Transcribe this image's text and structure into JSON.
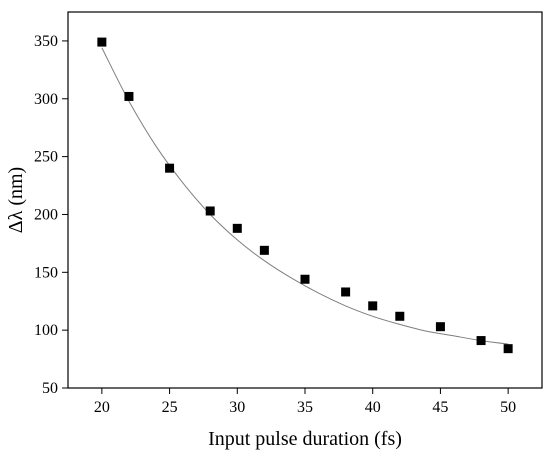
{
  "chart_data": {
    "type": "scatter",
    "xlabel": "Input pulse duration (fs)",
    "ylabel": "Δλ (nm)",
    "xlim": [
      17.5,
      52.5
    ],
    "ylim": [
      50,
      375
    ],
    "x_ticks": [
      20,
      25,
      30,
      35,
      40,
      45,
      50
    ],
    "y_ticks": [
      50,
      100,
      150,
      200,
      250,
      300,
      350
    ],
    "grid": false,
    "series": [
      {
        "marker": "square",
        "color": "#000000",
        "x": [
          20,
          22,
          25,
          28,
          30,
          32,
          35,
          38,
          40,
          42,
          45,
          48,
          50
        ],
        "y": [
          349,
          302,
          240,
          203,
          188,
          169,
          144,
          133,
          121,
          112,
          103,
          91,
          84
        ]
      }
    ],
    "fit": {
      "color": "#7f7f7f",
      "x": [
        20,
        22,
        24,
        26,
        28,
        30,
        32,
        34,
        36,
        38,
        40,
        42,
        44,
        46,
        48,
        50
      ],
      "y": [
        344,
        298,
        259,
        227,
        200,
        178,
        160,
        145,
        132,
        121,
        112,
        105,
        99,
        95,
        91,
        88
      ]
    }
  }
}
